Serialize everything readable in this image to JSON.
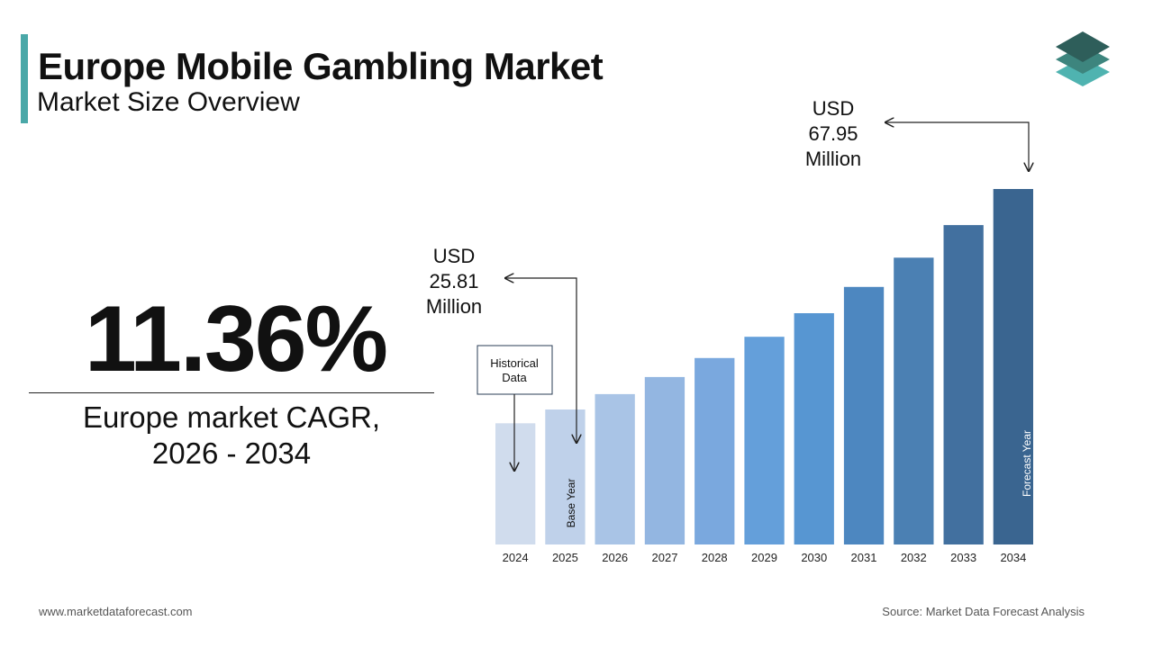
{
  "header": {
    "title": "Europe Mobile Gambling Market",
    "subtitle": "Market Size Overview"
  },
  "cagr": {
    "value": "11.36%",
    "label_line1": "Europe market CAGR,",
    "label_line2": "2026 - 2034"
  },
  "footer": {
    "website": "www.marketdataforecast.com",
    "source": "Source: Market Data Forecast Analysis"
  },
  "logo": {
    "icon": "stacked-layers-icon",
    "colors": [
      "#2e5e5a",
      "#3d857e",
      "#4fb3b0"
    ]
  },
  "chart_data": {
    "type": "bar",
    "title": "",
    "xlabel": "",
    "ylabel": "",
    "categories": [
      "2024",
      "2025",
      "2026",
      "2027",
      "2028",
      "2029",
      "2030",
      "2031",
      "2032",
      "2033",
      "2034"
    ],
    "values": [
      23.17,
      25.81,
      28.74,
      32.01,
      35.65,
      39.7,
      44.21,
      49.23,
      54.83,
      61.06,
      67.95
    ],
    "unit": "USD Million",
    "ylim": [
      0,
      67.95
    ],
    "grid": false,
    "colors": [
      "#d0dced",
      "#bfd1ea",
      "#a9c4e6",
      "#93b6e1",
      "#7aa8de",
      "#649fda",
      "#5796d2",
      "#4d87c0",
      "#4b80b3",
      "#42709f",
      "#3a6590"
    ],
    "callouts": {
      "base": {
        "line1": "USD",
        "line2": "25.81",
        "line3": "Million"
      },
      "end": {
        "line1": "USD",
        "line2": "67.95",
        "line3": "Million"
      },
      "historical_line1": "Historical",
      "historical_line2": "Data",
      "base_year": "Base Year",
      "forecast_year": "Forecast Year"
    }
  }
}
